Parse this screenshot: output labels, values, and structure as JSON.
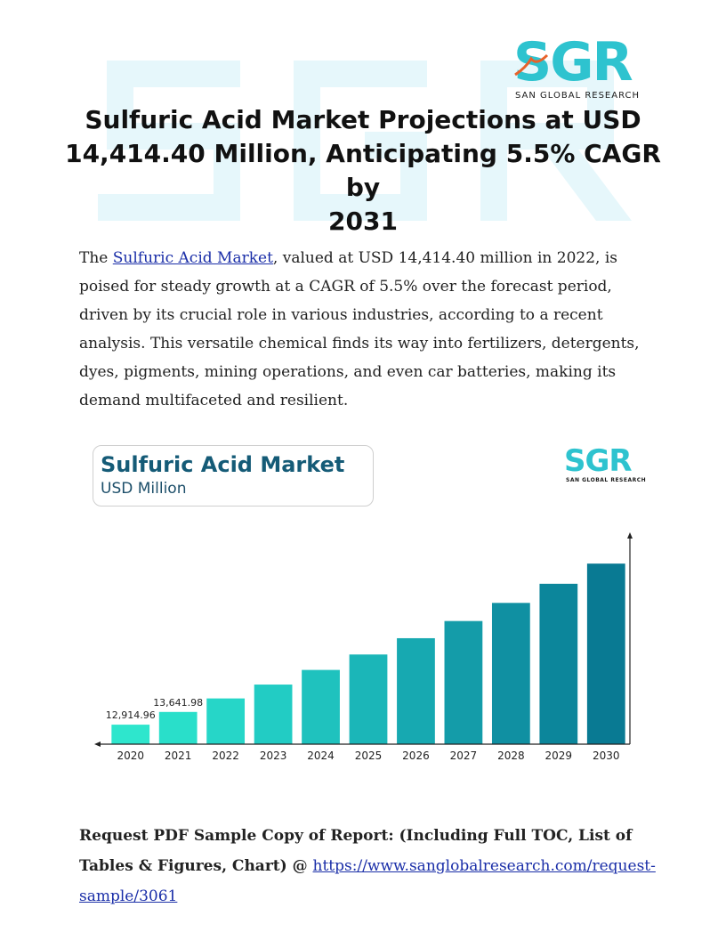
{
  "header": {
    "logo_text": "SGR",
    "logo_subtitle": "SAN GLOBAL RESEARCH",
    "title_line1": "Sulfuric Acid Market Projections at USD",
    "title_line2": "14,414.40 Million, Anticipating 5.5% CAGR by",
    "title_line3": "2031"
  },
  "intro": {
    "before_link": "The ",
    "link_text": "Sulfuric Acid Market",
    "after_link": ", valued at USD 14,414.40 million in 2022, is poised for steady growth at a CAGR of 5.5% over the forecast period, driven by its crucial role in various industries, according to a recent analysis. This versatile chemical finds its way into fertilizers, detergents, dyes, pigments, mining operations, and even car batteries, making its demand multifaceted and resilient."
  },
  "chart_card": {
    "title": "Sulfuric Acid Market",
    "unit": "USD Million",
    "logo_text": "SGR",
    "logo_subtitle": "SAN GLOBAL RESEARCH"
  },
  "chart_data": {
    "type": "bar",
    "title": "Sulfuric Acid Market",
    "ylabel": "USD Million",
    "categories": [
      "2020",
      "2021",
      "2022",
      "2023",
      "2024",
      "2025",
      "2026",
      "2027",
      "2028",
      "2029",
      "2030"
    ],
    "values": [
      12914.96,
      13641.98,
      14414.4,
      15207.2,
      16043.6,
      16926.0,
      17856.9,
      18839.0,
      19875.2,
      20968.3,
      22121.6
    ],
    "data_labels": [
      "12,914.96",
      "13,641.98",
      "",
      "",
      "",
      "",
      "",
      "",
      "",
      "",
      ""
    ],
    "ylim": [
      11800,
      23300
    ],
    "grid": false,
    "colors": [
      "#2ee6cd",
      "#29dfca",
      "#26d6c8",
      "#22ccc4",
      "#1fc2be",
      "#1bb6b8",
      "#17a9b1",
      "#149ca9",
      "#1090a2",
      "#0c869b",
      "#097a93"
    ]
  },
  "request": {
    "bold_text": "Request PDF Sample Copy of Report: (Including Full TOC, List of Tables & Figures, Chart) @ ",
    "link_text": "https://www.sanglobalresearch.com/request-sample/3061"
  },
  "colors": {
    "brand_teal": "#2ec3cf",
    "logo_orange": "#e8622b",
    "link_blue": "#1a2ea8",
    "chart_title": "#155b77"
  }
}
